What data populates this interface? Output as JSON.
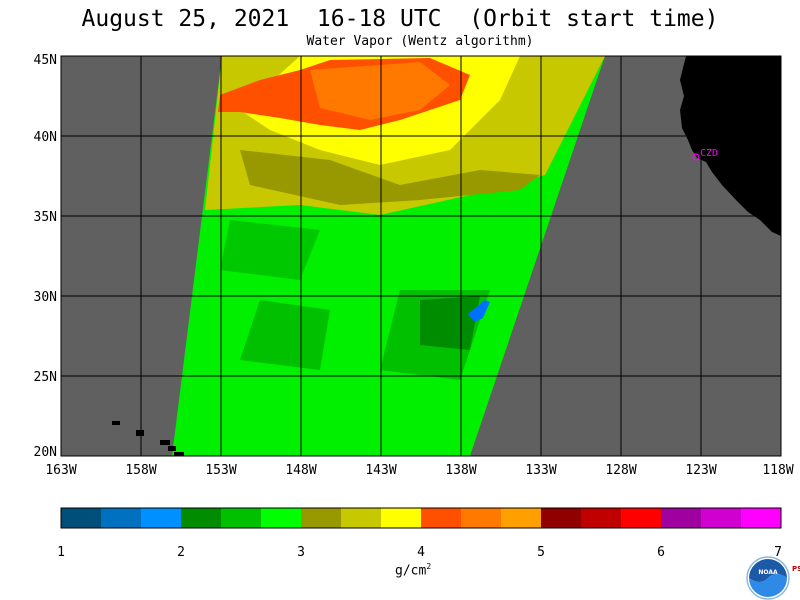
{
  "title": "August 25, 2021  16-18 UTC  (Orbit start time)",
  "subtitle": "Water Vapor (Wentz algorithm)",
  "station_label": "CZD",
  "lat_labels": [
    "45N",
    "40N",
    "35N",
    "30N",
    "25N",
    "20N"
  ],
  "lon_labels": [
    "163W",
    "158W",
    "153W",
    "148W",
    "143W",
    "138W",
    "133W",
    "128W",
    "123W",
    "118W"
  ],
  "colorbar": {
    "colors": [
      "#004f7a",
      "#0070c0",
      "#0090ff",
      "#008c00",
      "#00c000",
      "#00ff00",
      "#989800",
      "#c8c800",
      "#ffff00",
      "#ff5000",
      "#ff7800",
      "#ffa000",
      "#900000",
      "#c00000",
      "#ff0000",
      "#a000a0",
      "#d000d0",
      "#ff00ff"
    ],
    "tick_labels": [
      "1",
      "2",
      "3",
      "4",
      "5",
      "6",
      "7"
    ],
    "unit": "g/cm",
    "unit_exp": "2"
  },
  "colors": {
    "land": "#000000",
    "no_data": "#606060",
    "grid": "#000000"
  },
  "logo_text": "NOAA",
  "lab_text": "PSL"
}
